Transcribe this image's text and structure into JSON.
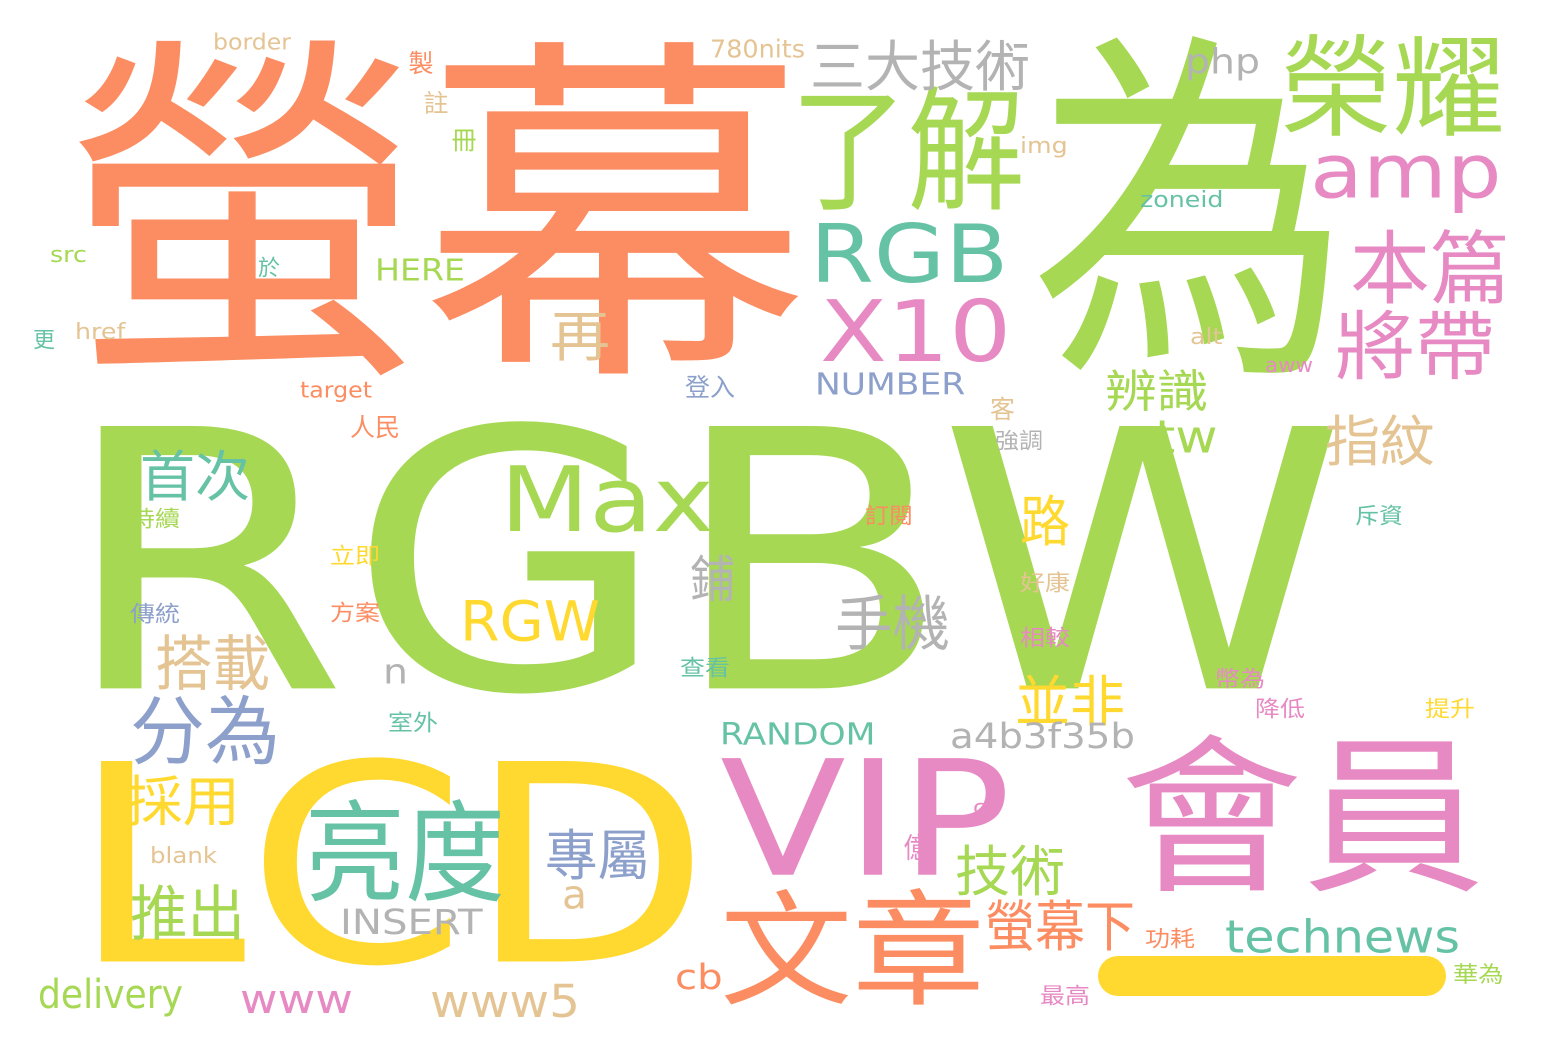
{
  "colors": {
    "orange": "#fc8d62",
    "green": "#a6d854",
    "teal": "#66c2a5",
    "pink": "#e78ac3",
    "yellow": "#ffd92f",
    "tan": "#e5c494",
    "blue": "#8da0cb",
    "gray": "#b3b3b3"
  },
  "words": [
    {
      "text": "螢",
      "color": "orange"
    },
    {
      "text": "幕",
      "color": "orange"
    },
    {
      "text": "為",
      "color": "green"
    },
    {
      "text": "RGBW",
      "color": "green"
    },
    {
      "text": "LCD",
      "color": "yellow"
    },
    {
      "text": "VIP",
      "color": "pink"
    },
    {
      "text": "會員",
      "color": "pink"
    },
    {
      "text": "文章",
      "color": "orange"
    },
    {
      "text": "了解",
      "color": "green"
    },
    {
      "text": "榮耀",
      "color": "green"
    },
    {
      "text": "amp",
      "color": "pink"
    },
    {
      "text": "RGB",
      "color": "teal"
    },
    {
      "text": "X10",
      "color": "pink"
    },
    {
      "text": "三大技術",
      "color": "gray"
    },
    {
      "text": "本篇",
      "color": "pink"
    },
    {
      "text": "將帶",
      "color": "pink"
    },
    {
      "text": "Max",
      "color": "green"
    },
    {
      "text": "亮度",
      "color": "teal"
    },
    {
      "text": "分為",
      "color": "blue"
    },
    {
      "text": "再",
      "color": "tan"
    },
    {
      "text": "辨識",
      "color": "green"
    },
    {
      "text": "tw",
      "color": "green"
    },
    {
      "text": "指紋",
      "color": "tan"
    },
    {
      "text": "首次",
      "color": "teal"
    },
    {
      "text": "路",
      "color": "yellow"
    },
    {
      "text": "鋪",
      "color": "gray"
    },
    {
      "text": "手機",
      "color": "gray"
    },
    {
      "text": "RGW",
      "color": "yellow"
    },
    {
      "text": "搭載",
      "color": "tan"
    },
    {
      "text": "並非",
      "color": "yellow"
    },
    {
      "text": "n",
      "color": "gray"
    },
    {
      "text": "a4b3f35b",
      "color": "gray"
    },
    {
      "text": "RANDOM",
      "color": "teal"
    },
    {
      "text": "採用",
      "color": "yellow"
    },
    {
      "text": "推出",
      "color": "green"
    },
    {
      "text": "專屬",
      "color": "blue"
    },
    {
      "text": "技術",
      "color": "green"
    },
    {
      "text": "a",
      "color": "tan"
    },
    {
      "text": "INSERT",
      "color": "gray"
    },
    {
      "text": "螢幕下",
      "color": "orange"
    },
    {
      "text": "technews",
      "color": "teal"
    },
    {
      "text": "delivery",
      "color": "green"
    },
    {
      "text": "www",
      "color": "pink"
    },
    {
      "text": "www5",
      "color": "tan"
    },
    {
      "text": "cb",
      "color": "orange"
    },
    {
      "text": "php",
      "color": "gray"
    },
    {
      "text": "780nits",
      "color": "tan"
    },
    {
      "text": "border",
      "color": "tan"
    },
    {
      "text": "img",
      "color": "tan"
    },
    {
      "text": "zoneid",
      "color": "teal"
    },
    {
      "text": "HERE",
      "color": "green"
    },
    {
      "text": "src",
      "color": "green"
    },
    {
      "text": "href",
      "color": "tan"
    },
    {
      "text": "target",
      "color": "orange"
    },
    {
      "text": "NUMBER",
      "color": "blue"
    },
    {
      "text": "alt",
      "color": "tan"
    },
    {
      "text": "aww",
      "color": "pink"
    },
    {
      "text": "blank",
      "color": "tan"
    },
    {
      "text": "ck",
      "color": "pink"
    },
    {
      "text": "製",
      "color": "orange"
    },
    {
      "text": "註",
      "color": "tan"
    },
    {
      "text": "冊",
      "color": "green"
    },
    {
      "text": "於",
      "color": "teal"
    },
    {
      "text": "更",
      "color": "teal"
    },
    {
      "text": "登入",
      "color": "blue"
    },
    {
      "text": "人民",
      "color": "orange"
    },
    {
      "text": "客",
      "color": "tan"
    },
    {
      "text": "強調",
      "color": "gray"
    },
    {
      "text": "訂閱",
      "color": "orange"
    },
    {
      "text": "斥資",
      "color": "teal"
    },
    {
      "text": "持續",
      "color": "green"
    },
    {
      "text": "立即",
      "color": "yellow"
    },
    {
      "text": "好康",
      "color": "tan"
    },
    {
      "text": "傳統",
      "color": "blue"
    },
    {
      "text": "方案",
      "color": "orange"
    },
    {
      "text": "相較",
      "color": "pink"
    },
    {
      "text": "查看",
      "color": "teal"
    },
    {
      "text": "幣為",
      "color": "pink"
    },
    {
      "text": "降低",
      "color": "pink"
    },
    {
      "text": "提升",
      "color": "yellow"
    },
    {
      "text": "室外",
      "color": "teal"
    },
    {
      "text": "億",
      "color": "pink"
    },
    {
      "text": "功耗",
      "color": "orange"
    },
    {
      "text": "最高",
      "color": "pink"
    },
    {
      "text": "華為",
      "color": "green"
    }
  ],
  "underscore_color": "yellow"
}
